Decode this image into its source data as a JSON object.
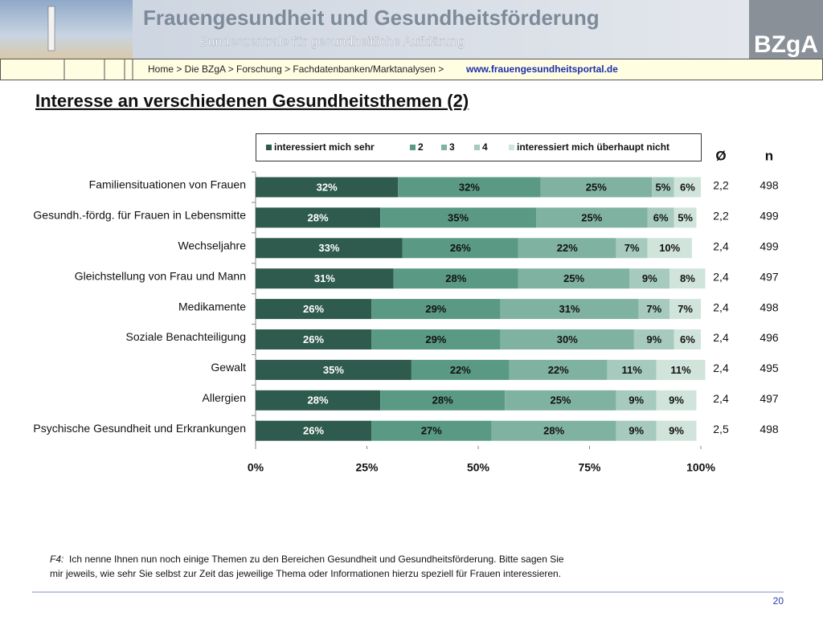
{
  "header": {
    "title": "Frauengesundheit und Gesundheitsförderung",
    "subtitle": "Bundeszentrale für gesundheitliche Aufklärung",
    "logo": "BZgA"
  },
  "breadcrumb": {
    "path": "Home > Die BZgA > Forschung > Fachdatenbanken/Marktanalysen >",
    "link": "www.frauengesundheitsportal.de"
  },
  "chart_data": {
    "type": "stacked_bar_h",
    "title": "Interesse an verschiedenen Gesundheitsthemen (2)",
    "categories": [
      "Familiensituationen von Frauen",
      "Gesundh.-fördg. für Frauen in Lebensmitte",
      "Wechseljahre",
      "Gleichstellung von Frau und Mann",
      "Medikamente",
      "Soziale Benachteiligung",
      "Gewalt",
      "Allergien",
      "Psychische Gesundheit und Erkrankungen"
    ],
    "series": [
      {
        "name": "interessiert mich sehr",
        "color": "#2e5b4d",
        "values": [
          32,
          28,
          33,
          31,
          26,
          26,
          35,
          28,
          26
        ],
        "value_labels": [
          "32%",
          "28%",
          "33%",
          "31%",
          "26%",
          "26%",
          "35%",
          "28%",
          "26%"
        ]
      },
      {
        "name": "2",
        "color": "#5a9a84",
        "values": [
          32,
          35,
          26,
          28,
          29,
          29,
          22,
          28,
          27
        ],
        "value_labels": [
          "32%",
          "35%",
          "26%",
          "28%",
          "29%",
          "29%",
          "22%",
          "28%",
          "27%"
        ]
      },
      {
        "name": "3",
        "color": "#80b2a2",
        "values": [
          25,
          25,
          22,
          25,
          31,
          30,
          22,
          25,
          28
        ],
        "value_labels": [
          "25%",
          "25%",
          "22%",
          "25%",
          "31%",
          "30%",
          "22%",
          "25%",
          "28%"
        ]
      },
      {
        "name": "4",
        "color": "#a6cbbe",
        "values": [
          5,
          6,
          7,
          9,
          7,
          9,
          11,
          9,
          9
        ],
        "value_labels": [
          "5%",
          "6%",
          "7%",
          "9%",
          "7%",
          "9%",
          "11%",
          "9%",
          "9%"
        ]
      },
      {
        "name": "interessiert mich überhaupt nicht",
        "color": "#d0e4dc",
        "values": [
          6,
          5,
          10,
          8,
          7,
          6,
          11,
          9,
          9
        ],
        "value_labels": [
          "6%",
          "5%",
          "10%",
          "8%",
          "7%",
          "6%",
          "11%",
          "9%",
          "9%"
        ]
      }
    ],
    "xlim": [
      0,
      100
    ],
    "xticks": [
      {
        "value": 0,
        "label": "0%"
      },
      {
        "value": 25,
        "label": "25%"
      },
      {
        "value": 50,
        "label": "50%"
      },
      {
        "value": 75,
        "label": "75%"
      },
      {
        "value": 100,
        "label": "100%"
      }
    ],
    "legend": "top"
  },
  "table": {
    "headers": [
      "Ø",
      "n"
    ],
    "rows": [
      [
        "2,2",
        "498"
      ],
      [
        "2,2",
        "499"
      ],
      [
        "2,4",
        "499"
      ],
      [
        "2,4",
        "497"
      ],
      [
        "2,4",
        "498"
      ],
      [
        "2,4",
        "496"
      ],
      [
        "2,4",
        "495"
      ],
      [
        "2,4",
        "497"
      ],
      [
        "2,5",
        "498"
      ]
    ]
  },
  "footnote": {
    "label": "F4:",
    "lines": [
      "Ich nenne Ihnen nun noch einige Themen zu den Bereichen Gesundheit und Gesundheitsförderung. Bitte sagen Sie",
      "mir jeweils, wie sehr Sie selbst zur Zeit das jeweilige Thema oder Informationen hierzu speziell für Frauen interessieren."
    ]
  },
  "page_number": "20"
}
